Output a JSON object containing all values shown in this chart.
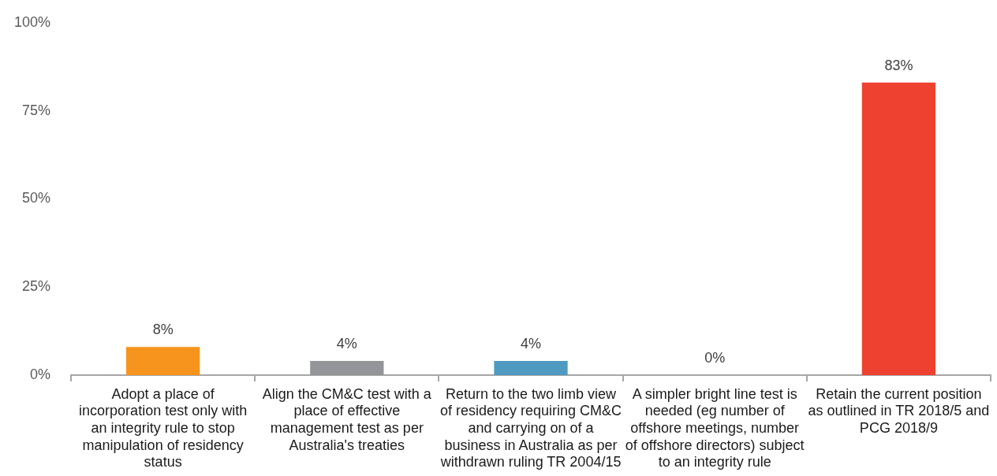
{
  "chart_data": {
    "type": "bar",
    "categories": [
      "Adopt a place of incorporation test only with an integrity rule to stop manipulation of residency status",
      "Align the CM&C test with a place of effective management test as per Australia's treaties",
      "Return to the two limb view of residency requiring CM&C and carrying on of a business in Australia as per withdrawn ruling TR 2004/15",
      "A simpler bright line test is needed (eg number of offshore meetings, number of offshore directors) subject to an integrity rule",
      "Retain the current position as outlined in TR 2018/5 and PCG 2018/9"
    ],
    "values": [
      8,
      4,
      4,
      0,
      83
    ],
    "value_labels": [
      "8%",
      "4%",
      "4%",
      "0%",
      "83%"
    ],
    "colors": [
      "#f7941d",
      "#939598",
      "#4f9ac0",
      "#4f9ac0",
      "#ef4130"
    ],
    "ylim": [
      0,
      100
    ],
    "yticks": [
      {
        "value": 0,
        "label": "0%"
      },
      {
        "value": 25,
        "label": "25%"
      },
      {
        "value": 50,
        "label": "50%"
      },
      {
        "value": 75,
        "label": "75%"
      },
      {
        "value": 100,
        "label": "100%"
      }
    ],
    "grid": false,
    "legend": false
  }
}
